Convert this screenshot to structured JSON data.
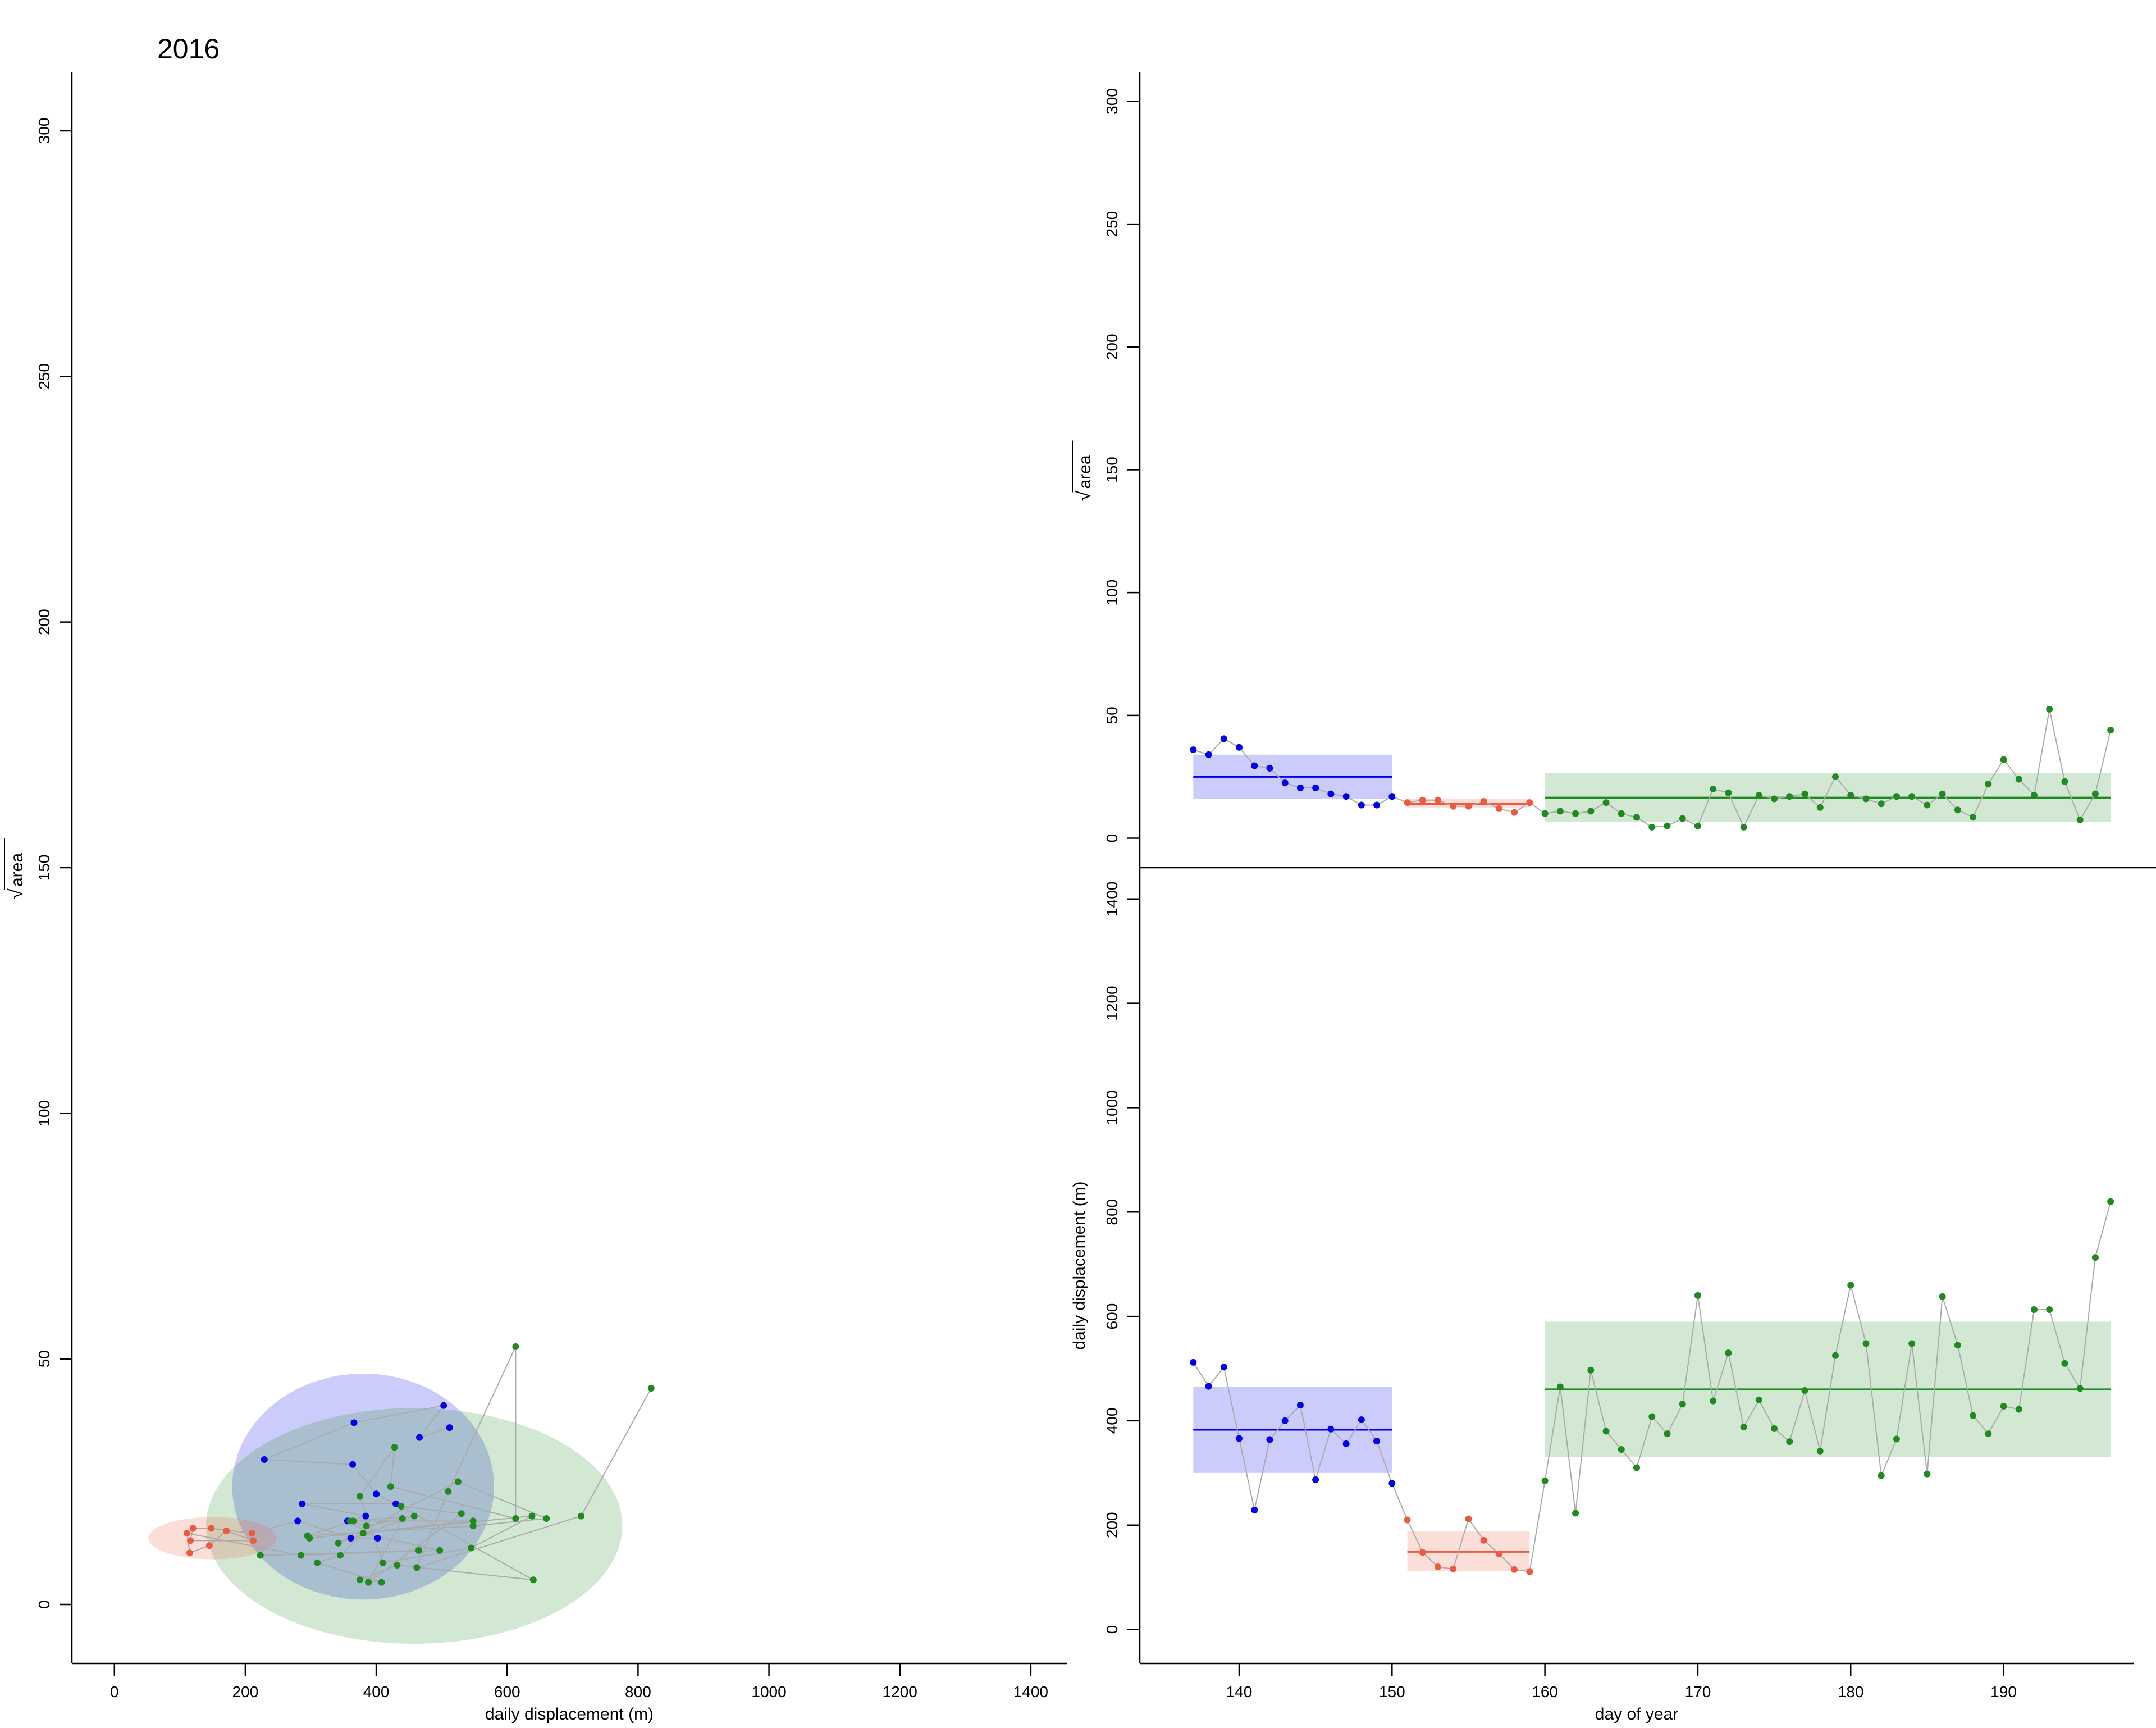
{
  "figure": {
    "year": "2016",
    "sqrt_symbol": "√",
    "colors": {
      "phase1": "#0000ee",
      "phase2": "#ee5a3f",
      "phase3": "#1f8a1f",
      "path": "#aaaaaa"
    }
  },
  "chart_data": [
    {
      "id": "left",
      "type": "scatter",
      "xlabel": "daily displacement (m)",
      "ylabel": "area",
      "ylabel_sqrt": true,
      "xlim": [
        -65,
        1455
      ],
      "ylim": [
        -12,
        312
      ],
      "xticks": [
        0,
        200,
        400,
        600,
        800,
        1000,
        1200,
        1400
      ],
      "yticks": [
        0,
        50,
        100,
        150,
        200,
        250,
        300
      ],
      "ellipses": [
        {
          "phase": "phase1",
          "cx": 380,
          "cy": 24,
          "rx": 200,
          "ry": 23
        },
        {
          "phase": "phase3",
          "cx": 458,
          "cy": 16,
          "rx": 318,
          "ry": 24
        },
        {
          "phase": "phase2",
          "cx": 150,
          "cy": 13.5,
          "rx": 98,
          "ry": 4.3
        }
      ]
    },
    {
      "id": "top-right",
      "type": "line",
      "ylabel": "area",
      "ylabel_sqrt": true,
      "xlim": [
        133.5,
        198.5
      ],
      "ylim": [
        -12,
        312
      ],
      "yticks": [
        0,
        50,
        100,
        150,
        200,
        250,
        300
      ],
      "value_key": "area",
      "bands": [
        {
          "phase": "phase1",
          "x0": 137,
          "x1": 150,
          "mean": 25,
          "lo": 16,
          "hi": 34
        },
        {
          "phase": "phase2",
          "x0": 151,
          "x1": 159,
          "mean": 14,
          "lo": 12.5,
          "hi": 16
        },
        {
          "phase": "phase3",
          "x0": 160,
          "x1": 197,
          "mean": 16.5,
          "lo": 6.5,
          "hi": 26.5
        }
      ]
    },
    {
      "id": "bottom-right",
      "type": "line",
      "xlabel": "day of year",
      "ylabel": "daily displacement (m)",
      "xlim": [
        133.5,
        198.5
      ],
      "ylim": [
        -65,
        1460
      ],
      "xticks": [
        140,
        150,
        160,
        170,
        180,
        190
      ],
      "yticks": [
        0,
        200,
        400,
        600,
        800,
        1000,
        1200,
        1400
      ],
      "value_key": "disp",
      "bands": [
        {
          "phase": "phase1",
          "x0": 137,
          "x1": 150,
          "mean": 383,
          "lo": 300,
          "hi": 465
        },
        {
          "phase": "phase2",
          "x0": 151,
          "x1": 159,
          "mean": 149,
          "lo": 112,
          "hi": 188
        },
        {
          "phase": "phase3",
          "x0": 160,
          "x1": 197,
          "mean": 460,
          "lo": 330,
          "hi": 590
        }
      ]
    }
  ],
  "series": [
    {
      "day": 137,
      "disp": 512,
      "area": 36,
      "phase": "phase1"
    },
    {
      "day": 138,
      "disp": 466,
      "area": 34,
      "phase": "phase1"
    },
    {
      "day": 139,
      "disp": 503,
      "area": 40.5,
      "phase": "phase1"
    },
    {
      "day": 140,
      "disp": 366,
      "area": 37,
      "phase": "phase1"
    },
    {
      "day": 141,
      "disp": 229,
      "area": 29.5,
      "phase": "phase1"
    },
    {
      "day": 142,
      "disp": 364,
      "area": 28.5,
      "phase": "phase1"
    },
    {
      "day": 143,
      "disp": 400,
      "area": 22.5,
      "phase": "phase1"
    },
    {
      "day": 144,
      "disp": 430,
      "area": 20.5,
      "phase": "phase1"
    },
    {
      "day": 145,
      "disp": 287,
      "area": 20.5,
      "phase": "phase1"
    },
    {
      "day": 146,
      "disp": 384,
      "area": 18,
      "phase": "phase1"
    },
    {
      "day": 147,
      "disp": 356,
      "area": 17,
      "phase": "phase1"
    },
    {
      "day": 148,
      "disp": 402,
      "area": 13.5,
      "phase": "phase1"
    },
    {
      "day": 149,
      "disp": 361,
      "area": 13.5,
      "phase": "phase1"
    },
    {
      "day": 150,
      "disp": 280,
      "area": 17,
      "phase": "phase1"
    },
    {
      "day": 151,
      "disp": 210,
      "area": 14.5,
      "phase": "phase2"
    },
    {
      "day": 152,
      "disp": 148,
      "area": 15.5,
      "phase": "phase2"
    },
    {
      "day": 153,
      "disp": 120,
      "area": 15.5,
      "phase": "phase2"
    },
    {
      "day": 154,
      "disp": 116,
      "area": 13,
      "phase": "phase2"
    },
    {
      "day": 155,
      "disp": 212,
      "area": 13,
      "phase": "phase2"
    },
    {
      "day": 156,
      "disp": 171,
      "area": 15,
      "phase": "phase2"
    },
    {
      "day": 157,
      "disp": 145,
      "area": 12,
      "phase": "phase2"
    },
    {
      "day": 158,
      "disp": 115,
      "area": 10.5,
      "phase": "phase2"
    },
    {
      "day": 159,
      "disp": 111,
      "area": 14.5,
      "phase": "phase2"
    },
    {
      "day": 160,
      "disp": 285,
      "area": 10,
      "phase": "phase3"
    },
    {
      "day": 161,
      "disp": 465,
      "area": 11,
      "phase": "phase3"
    },
    {
      "day": 162,
      "disp": 223,
      "area": 10,
      "phase": "phase3"
    },
    {
      "day": 163,
      "disp": 497,
      "area": 11,
      "phase": "phase3"
    },
    {
      "day": 164,
      "disp": 380,
      "area": 14.5,
      "phase": "phase3"
    },
    {
      "day": 165,
      "disp": 345,
      "area": 10,
      "phase": "phase3"
    },
    {
      "day": 166,
      "disp": 310,
      "area": 8.5,
      "phase": "phase3"
    },
    {
      "day": 167,
      "disp": 408,
      "area": 4.5,
      "phase": "phase3"
    },
    {
      "day": 168,
      "disp": 375,
      "area": 5,
      "phase": "phase3"
    },
    {
      "day": 169,
      "disp": 432,
      "area": 8,
      "phase": "phase3"
    },
    {
      "day": 170,
      "disp": 640,
      "area": 5,
      "phase": "phase3"
    },
    {
      "day": 171,
      "disp": 438,
      "area": 20,
      "phase": "phase3"
    },
    {
      "day": 172,
      "disp": 530,
      "area": 18.5,
      "phase": "phase3"
    },
    {
      "day": 173,
      "disp": 388,
      "area": 4.5,
      "phase": "phase3"
    },
    {
      "day": 174,
      "disp": 440,
      "area": 17.5,
      "phase": "phase3"
    },
    {
      "day": 175,
      "disp": 385,
      "area": 16,
      "phase": "phase3"
    },
    {
      "day": 176,
      "disp": 360,
      "area": 17,
      "phase": "phase3"
    },
    {
      "day": 177,
      "disp": 458,
      "area": 18,
      "phase": "phase3"
    },
    {
      "day": 178,
      "disp": 342,
      "area": 12.5,
      "phase": "phase3"
    },
    {
      "day": 179,
      "disp": 525,
      "area": 25,
      "phase": "phase3"
    },
    {
      "day": 180,
      "disp": 660,
      "area": 17.5,
      "phase": "phase3"
    },
    {
      "day": 181,
      "disp": 548,
      "area": 16,
      "phase": "phase3"
    },
    {
      "day": 182,
      "disp": 295,
      "area": 14,
      "phase": "phase3"
    },
    {
      "day": 183,
      "disp": 365,
      "area": 17,
      "phase": "phase3"
    },
    {
      "day": 184,
      "disp": 548,
      "area": 17,
      "phase": "phase3"
    },
    {
      "day": 185,
      "disp": 298,
      "area": 13.5,
      "phase": "phase3"
    },
    {
      "day": 186,
      "disp": 638,
      "area": 18,
      "phase": "phase3"
    },
    {
      "day": 187,
      "disp": 545,
      "area": 11.5,
      "phase": "phase3"
    },
    {
      "day": 188,
      "disp": 410,
      "area": 8.5,
      "phase": "phase3"
    },
    {
      "day": 189,
      "disp": 375,
      "area": 22,
      "phase": "phase3"
    },
    {
      "day": 190,
      "disp": 428,
      "area": 32,
      "phase": "phase3"
    },
    {
      "day": 191,
      "disp": 422,
      "area": 24,
      "phase": "phase3"
    },
    {
      "day": 192,
      "disp": 613,
      "area": 17.5,
      "phase": "phase3"
    },
    {
      "day": 193,
      "disp": 613,
      "area": 52.5,
      "phase": "phase3"
    },
    {
      "day": 194,
      "disp": 510,
      "area": 23,
      "phase": "phase3"
    },
    {
      "day": 195,
      "disp": 462,
      "area": 7.5,
      "phase": "phase3"
    },
    {
      "day": 196,
      "disp": 713,
      "area": 18,
      "phase": "phase3"
    },
    {
      "day": 197,
      "disp": 820,
      "area": 44,
      "phase": "phase3"
    }
  ]
}
